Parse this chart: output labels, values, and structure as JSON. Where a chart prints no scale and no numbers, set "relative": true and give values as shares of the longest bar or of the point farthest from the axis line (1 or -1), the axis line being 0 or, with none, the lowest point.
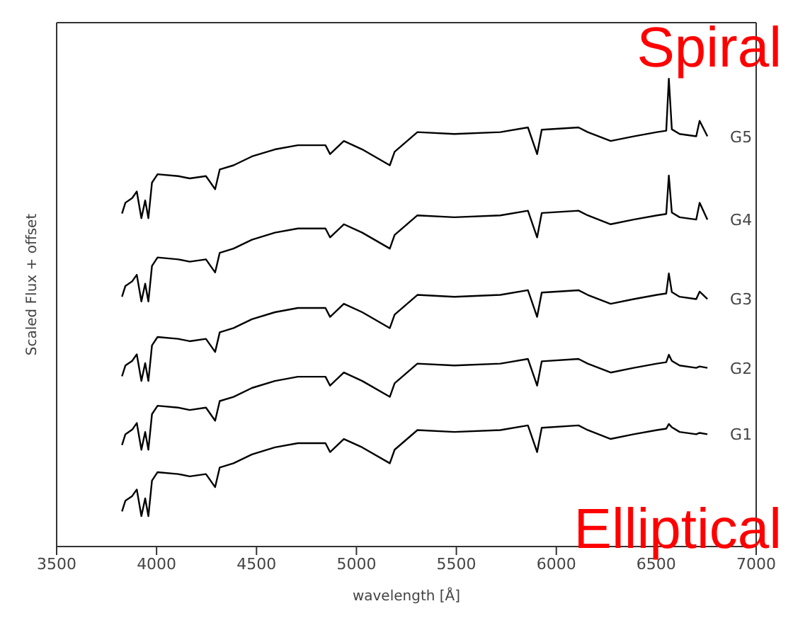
{
  "chart_data": {
    "type": "line",
    "xlabel": "wavelength [Å]",
    "ylabel": "Scaled Flux + offset",
    "relative": true,
    "xlim": [
      3500,
      7000
    ],
    "xticks": [
      3500,
      4000,
      4500,
      5000,
      5500,
      6000,
      6500,
      7000
    ],
    "x": [
      3827,
      3844,
      3878,
      3901,
      3924,
      3943,
      3959,
      3977,
      4005,
      4108,
      4166,
      4247,
      4293,
      4316,
      4385,
      4477,
      4592,
      4707,
      4845,
      4868,
      4937,
      5029,
      5167,
      5191,
      5305,
      5490,
      5720,
      5858,
      5904,
      5927,
      6111,
      6157,
      6272,
      6387,
      6503,
      6550,
      6563,
      6578,
      6617,
      6700,
      6717,
      6756
    ],
    "series": [
      {
        "name": "G1",
        "color": "#000000",
        "values": [
          0.075,
          0.098,
          0.108,
          0.122,
          0.065,
          0.103,
          0.065,
          0.141,
          0.159,
          0.155,
          0.15,
          0.155,
          0.127,
          0.169,
          0.178,
          0.197,
          0.212,
          0.221,
          0.221,
          0.202,
          0.23,
          0.212,
          0.178,
          0.207,
          0.249,
          0.245,
          0.249,
          0.259,
          0.202,
          0.254,
          0.259,
          0.249,
          0.23,
          0.24,
          0.249,
          0.252,
          0.262,
          0.255,
          0.245,
          0.24,
          0.243,
          0.24
        ]
      },
      {
        "name": "G2",
        "color": "#000000",
        "values": [
          0.217,
          0.24,
          0.25,
          0.264,
          0.207,
          0.245,
          0.207,
          0.283,
          0.301,
          0.297,
          0.292,
          0.297,
          0.269,
          0.311,
          0.32,
          0.339,
          0.354,
          0.363,
          0.363,
          0.344,
          0.372,
          0.354,
          0.32,
          0.349,
          0.391,
          0.387,
          0.391,
          0.401,
          0.344,
          0.396,
          0.401,
          0.391,
          0.372,
          0.382,
          0.391,
          0.394,
          0.41,
          0.397,
          0.387,
          0.382,
          0.385,
          0.382
        ]
      },
      {
        "name": "G3",
        "color": "#000000",
        "values": [
          0.364,
          0.387,
          0.397,
          0.411,
          0.354,
          0.392,
          0.354,
          0.43,
          0.448,
          0.444,
          0.439,
          0.444,
          0.416,
          0.458,
          0.467,
          0.486,
          0.501,
          0.51,
          0.51,
          0.491,
          0.519,
          0.501,
          0.467,
          0.496,
          0.538,
          0.534,
          0.538,
          0.548,
          0.491,
          0.543,
          0.548,
          0.538,
          0.519,
          0.529,
          0.538,
          0.541,
          0.584,
          0.544,
          0.534,
          0.529,
          0.545,
          0.529
        ]
      },
      {
        "name": "G4",
        "color": "#000000",
        "values": [
          0.534,
          0.557,
          0.567,
          0.581,
          0.524,
          0.562,
          0.524,
          0.6,
          0.618,
          0.614,
          0.609,
          0.614,
          0.586,
          0.628,
          0.637,
          0.656,
          0.671,
          0.68,
          0.68,
          0.661,
          0.689,
          0.671,
          0.637,
          0.666,
          0.708,
          0.704,
          0.708,
          0.718,
          0.661,
          0.713,
          0.718,
          0.708,
          0.689,
          0.699,
          0.708,
          0.711,
          0.793,
          0.714,
          0.704,
          0.699,
          0.735,
          0.699
        ]
      },
      {
        "name": "G5",
        "color": "#000000",
        "values": [
          0.712,
          0.735,
          0.745,
          0.759,
          0.702,
          0.74,
          0.702,
          0.778,
          0.796,
          0.792,
          0.787,
          0.792,
          0.764,
          0.806,
          0.815,
          0.834,
          0.849,
          0.858,
          0.858,
          0.839,
          0.867,
          0.849,
          0.815,
          0.844,
          0.886,
          0.882,
          0.886,
          0.896,
          0.839,
          0.891,
          0.896,
          0.886,
          0.867,
          0.877,
          0.886,
          0.889,
          1.0,
          0.892,
          0.882,
          0.877,
          0.91,
          0.877
        ]
      }
    ],
    "annotations": [
      "Spiral",
      "Elliptical"
    ]
  }
}
